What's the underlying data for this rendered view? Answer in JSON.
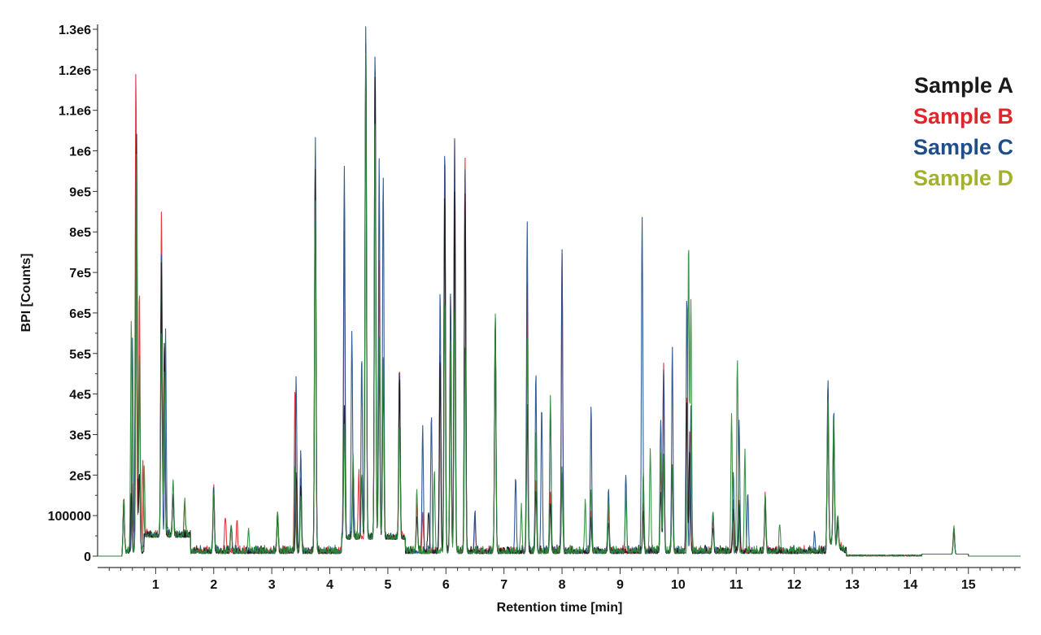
{
  "chart_data": {
    "type": "line",
    "xlabel": "Retention time [min]",
    "ylabel": "BPI [Counts]",
    "xlim": [
      0,
      15.9
    ],
    "ylim": [
      0,
      1300000
    ],
    "x_ticks": [
      1,
      2,
      3,
      4,
      5,
      6,
      7,
      8,
      9,
      10,
      11,
      12,
      13,
      14,
      15
    ],
    "x_tick_labels": [
      "1",
      "2",
      "3",
      "4",
      "5",
      "6",
      "7",
      "8",
      "9",
      "10",
      "11",
      "12",
      "13",
      "14",
      "15"
    ],
    "y_ticks": [
      0,
      100000,
      200000,
      300000,
      400000,
      500000,
      600000,
      700000,
      800000,
      900000,
      1000000,
      1100000,
      1200000,
      1300000
    ],
    "y_tick_labels": [
      "0",
      "100000",
      "2e5",
      "3e5",
      "4e5",
      "5e5",
      "6e5",
      "7e5",
      "8e5",
      "9e5",
      "1e6",
      "1.1e6",
      "1.2e6",
      "1.3e6"
    ],
    "legend_position": "top-right",
    "grid": false,
    "series": [
      {
        "name": "Sample A",
        "color": "#1a1a1a",
        "peaks": [
          [
            0.45,
            130000
          ],
          [
            0.58,
            150000
          ],
          [
            0.67,
            1050000
          ],
          [
            0.72,
            200000
          ],
          [
            1.1,
            680000
          ],
          [
            1.15,
            480000
          ],
          [
            1.3,
            90000
          ],
          [
            2.0,
            150000
          ],
          [
            2.3,
            60000
          ],
          [
            3.1,
            90000
          ],
          [
            3.42,
            200000
          ],
          [
            3.5,
            160000
          ],
          [
            3.75,
            950000
          ],
          [
            4.25,
            320000
          ],
          [
            4.4,
            160000
          ],
          [
            4.55,
            150000
          ],
          [
            4.62,
            1200000
          ],
          [
            4.78,
            1170000
          ],
          [
            4.85,
            450000
          ],
          [
            4.92,
            400000
          ],
          [
            5.2,
            400000
          ],
          [
            5.5,
            90000
          ],
          [
            5.7,
            100000
          ],
          [
            5.9,
            480000
          ],
          [
            5.98,
            900000
          ],
          [
            6.08,
            500000
          ],
          [
            6.15,
            890000
          ],
          [
            6.33,
            880000
          ],
          [
            6.85,
            580000
          ],
          [
            7.4,
            350000
          ],
          [
            7.55,
            150000
          ],
          [
            7.8,
            120000
          ],
          [
            8.0,
            200000
          ],
          [
            8.5,
            80000
          ],
          [
            8.8,
            70000
          ],
          [
            9.4,
            100000
          ],
          [
            9.7,
            150000
          ],
          [
            9.75,
            230000
          ],
          [
            9.9,
            200000
          ],
          [
            10.15,
            380000
          ],
          [
            10.2,
            250000
          ],
          [
            10.6,
            60000
          ],
          [
            10.95,
            100000
          ],
          [
            11.05,
            120000
          ],
          [
            11.5,
            130000
          ],
          [
            12.58,
            330000
          ],
          [
            12.68,
            280000
          ],
          [
            12.75,
            60000
          ],
          [
            14.75,
            60000
          ]
        ]
      },
      {
        "name": "Sample B",
        "color": "#e0262b",
        "peaks": [
          [
            0.45,
            140000
          ],
          [
            0.6,
            160000
          ],
          [
            0.66,
            1190000
          ],
          [
            0.72,
            650000
          ],
          [
            0.78,
            220000
          ],
          [
            1.1,
            800000
          ],
          [
            1.15,
            470000
          ],
          [
            1.3,
            100000
          ],
          [
            1.5,
            80000
          ],
          [
            2.0,
            170000
          ],
          [
            2.2,
            90000
          ],
          [
            2.4,
            80000
          ],
          [
            3.1,
            100000
          ],
          [
            3.4,
            400000
          ],
          [
            3.5,
            180000
          ],
          [
            3.75,
            980000
          ],
          [
            4.25,
            760000
          ],
          [
            4.4,
            180000
          ],
          [
            4.5,
            160000
          ],
          [
            4.62,
            1230000
          ],
          [
            4.78,
            1180000
          ],
          [
            4.85,
            680000
          ],
          [
            4.92,
            450000
          ],
          [
            5.2,
            430000
          ],
          [
            5.5,
            120000
          ],
          [
            5.6,
            100000
          ],
          [
            5.9,
            500000
          ],
          [
            5.98,
            980000
          ],
          [
            6.08,
            640000
          ],
          [
            6.15,
            1020000
          ],
          [
            6.33,
            980000
          ],
          [
            6.5,
            90000
          ],
          [
            6.85,
            570000
          ],
          [
            7.4,
            660000
          ],
          [
            7.55,
            180000
          ],
          [
            7.8,
            150000
          ],
          [
            8.0,
            730000
          ],
          [
            8.5,
            90000
          ],
          [
            8.8,
            100000
          ],
          [
            9.4,
            120000
          ],
          [
            9.7,
            200000
          ],
          [
            9.75,
            470000
          ],
          [
            9.9,
            220000
          ],
          [
            10.15,
            380000
          ],
          [
            10.2,
            300000
          ],
          [
            10.6,
            80000
          ],
          [
            10.95,
            120000
          ],
          [
            11.05,
            130000
          ],
          [
            11.5,
            140000
          ],
          [
            12.58,
            380000
          ],
          [
            12.68,
            300000
          ],
          [
            12.75,
            70000
          ],
          [
            14.75,
            60000
          ]
        ]
      },
      {
        "name": "Sample C",
        "color": "#1f4e8c",
        "peaks": [
          [
            0.45,
            130000
          ],
          [
            0.6,
            530000
          ],
          [
            0.67,
            1000000
          ],
          [
            0.72,
            470000
          ],
          [
            1.1,
            700000
          ],
          [
            1.17,
            500000
          ],
          [
            1.3,
            100000
          ],
          [
            2.0,
            160000
          ],
          [
            2.3,
            70000
          ],
          [
            3.1,
            90000
          ],
          [
            3.42,
            440000
          ],
          [
            3.5,
            250000
          ],
          [
            3.75,
            1030000
          ],
          [
            4.25,
            920000
          ],
          [
            4.38,
            510000
          ],
          [
            4.55,
            450000
          ],
          [
            4.62,
            1280000
          ],
          [
            4.78,
            1220000
          ],
          [
            4.85,
            930000
          ],
          [
            4.92,
            900000
          ],
          [
            5.2,
            420000
          ],
          [
            5.6,
            310000
          ],
          [
            5.75,
            340000
          ],
          [
            5.9,
            650000
          ],
          [
            5.98,
            1010000
          ],
          [
            6.08,
            640000
          ],
          [
            6.15,
            1020000
          ],
          [
            6.33,
            950000
          ],
          [
            6.5,
            100000
          ],
          [
            6.85,
            570000
          ],
          [
            7.2,
            180000
          ],
          [
            7.4,
            820000
          ],
          [
            7.55,
            440000
          ],
          [
            7.65,
            360000
          ],
          [
            7.8,
            360000
          ],
          [
            8.0,
            750000
          ],
          [
            8.5,
            360000
          ],
          [
            8.8,
            160000
          ],
          [
            9.1,
            190000
          ],
          [
            9.38,
            830000
          ],
          [
            9.7,
            330000
          ],
          [
            9.75,
            450000
          ],
          [
            9.9,
            500000
          ],
          [
            10.15,
            640000
          ],
          [
            10.22,
            350000
          ],
          [
            10.6,
            100000
          ],
          [
            10.95,
            200000
          ],
          [
            11.05,
            320000
          ],
          [
            11.2,
            140000
          ],
          [
            11.5,
            130000
          ],
          [
            12.35,
            50000
          ],
          [
            12.58,
            400000
          ],
          [
            12.68,
            330000
          ],
          [
            12.75,
            80000
          ],
          [
            14.75,
            65000
          ]
        ]
      },
      {
        "name": "Sample D",
        "color": "#2e8b3a",
        "peaks": [
          [
            0.45,
            140000
          ],
          [
            0.58,
            570000
          ],
          [
            0.67,
            1000000
          ],
          [
            0.72,
            500000
          ],
          [
            0.8,
            180000
          ],
          [
            1.1,
            500000
          ],
          [
            1.15,
            400000
          ],
          [
            1.3,
            140000
          ],
          [
            1.5,
            90000
          ],
          [
            2.0,
            150000
          ],
          [
            2.3,
            70000
          ],
          [
            2.6,
            60000
          ],
          [
            3.1,
            100000
          ],
          [
            3.4,
            220000
          ],
          [
            3.5,
            140000
          ],
          [
            3.75,
            870000
          ],
          [
            4.25,
            270000
          ],
          [
            4.4,
            200000
          ],
          [
            4.55,
            150000
          ],
          [
            4.62,
            1200000
          ],
          [
            4.78,
            1050000
          ],
          [
            4.85,
            500000
          ],
          [
            4.92,
            450000
          ],
          [
            5.2,
            280000
          ],
          [
            5.5,
            150000
          ],
          [
            5.8,
            200000
          ],
          [
            5.98,
            630000
          ],
          [
            6.08,
            530000
          ],
          [
            6.15,
            600000
          ],
          [
            6.33,
            500000
          ],
          [
            6.85,
            580000
          ],
          [
            7.3,
            110000
          ],
          [
            7.4,
            520000
          ],
          [
            7.55,
            300000
          ],
          [
            7.8,
            380000
          ],
          [
            8.0,
            200000
          ],
          [
            8.4,
            130000
          ],
          [
            8.5,
            150000
          ],
          [
            8.8,
            120000
          ],
          [
            9.1,
            140000
          ],
          [
            9.4,
            200000
          ],
          [
            9.52,
            250000
          ],
          [
            9.7,
            240000
          ],
          [
            9.75,
            240000
          ],
          [
            9.9,
            220000
          ],
          [
            10.18,
            770000
          ],
          [
            10.22,
            620000
          ],
          [
            10.6,
            100000
          ],
          [
            10.92,
            340000
          ],
          [
            11.02,
            480000
          ],
          [
            11.15,
            240000
          ],
          [
            11.5,
            140000
          ],
          [
            11.75,
            70000
          ],
          [
            12.58,
            350000
          ],
          [
            12.68,
            320000
          ],
          [
            12.75,
            80000
          ],
          [
            14.75,
            70000
          ]
        ]
      }
    ]
  }
}
